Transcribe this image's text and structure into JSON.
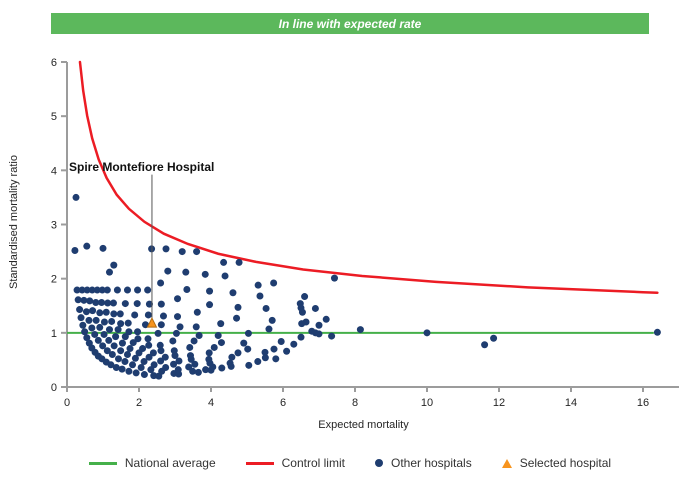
{
  "banner": {
    "text": "In line with expected rate",
    "bg": "#5cb85c",
    "fg": "#ffffff"
  },
  "colors": {
    "axis": "#9c9c9c",
    "tick_text": "#262626",
    "national_average": "#45b04a",
    "control_limit": "#ec1c24",
    "other_hospitals": "#1f3d70",
    "selected_fill": "#f7941e",
    "selected_stroke": "#b06a10",
    "annotation_line": "#555555"
  },
  "chart_data": {
    "type": "scatter",
    "xlabel": "Expected mortality",
    "ylabel": "Standardised mortality ratio",
    "xlim": [
      0,
      17
    ],
    "ylim": [
      0,
      6
    ],
    "xticks": [
      0,
      2,
      4,
      6,
      8,
      10,
      12,
      14,
      16
    ],
    "yticks": [
      0,
      1,
      2,
      3,
      4,
      5,
      6
    ],
    "grid": false,
    "legend_position": "bottom",
    "annotation": {
      "label": "Spire Montefiore Hospital",
      "line_x": 2.36,
      "line_top_y": 3.92
    },
    "selected_hospital": {
      "x": 2.36,
      "y": 1.18
    },
    "national_average": {
      "y": 1.0,
      "x_start": 0,
      "x_end": 16.3
    },
    "control_limit_points": [
      [
        0.36,
        6.0
      ],
      [
        0.45,
        5.47
      ],
      [
        0.56,
        5.01
      ],
      [
        0.7,
        4.59
      ],
      [
        0.88,
        4.2
      ],
      [
        1.1,
        3.86
      ],
      [
        1.38,
        3.55
      ],
      [
        1.72,
        3.29
      ],
      [
        2.15,
        3.05
      ],
      [
        2.69,
        2.83
      ],
      [
        3.36,
        2.64
      ],
      [
        4.2,
        2.46
      ],
      [
        5.25,
        2.31
      ],
      [
        6.56,
        2.17
      ],
      [
        8.2,
        2.05
      ],
      [
        10.25,
        1.94
      ],
      [
        12.8,
        1.84
      ],
      [
        16.0,
        1.75
      ],
      [
        16.4,
        1.74
      ]
    ],
    "other_hospitals": [
      [
        0.28,
        1.79
      ],
      [
        0.31,
        1.61
      ],
      [
        0.35,
        1.43
      ],
      [
        0.39,
        1.28
      ],
      [
        0.44,
        1.14
      ],
      [
        0.49,
        1.02
      ],
      [
        0.55,
        0.91
      ],
      [
        0.62,
        0.81
      ],
      [
        0.69,
        0.72
      ],
      [
        0.78,
        0.64
      ],
      [
        0.87,
        0.57
      ],
      [
        0.97,
        0.52
      ],
      [
        1.09,
        0.46
      ],
      [
        1.22,
        0.41
      ],
      [
        1.37,
        0.36
      ],
      [
        1.53,
        0.33
      ],
      [
        1.72,
        0.29
      ],
      [
        1.92,
        0.26
      ],
      [
        2.15,
        0.23
      ],
      [
        2.41,
        0.21
      ],
      [
        2.55,
        0.2
      ],
      [
        0.42,
        1.79
      ],
      [
        0.47,
        1.6
      ],
      [
        0.54,
        1.39
      ],
      [
        0.61,
        1.23
      ],
      [
        0.69,
        1.09
      ],
      [
        0.77,
        0.97
      ],
      [
        0.87,
        0.86
      ],
      [
        0.99,
        0.76
      ],
      [
        1.12,
        0.67
      ],
      [
        1.26,
        0.6
      ],
      [
        1.43,
        0.52
      ],
      [
        1.61,
        0.47
      ],
      [
        1.82,
        0.41
      ],
      [
        2.06,
        0.36
      ],
      [
        2.33,
        0.32
      ],
      [
        2.63,
        0.29
      ],
      [
        2.97,
        0.25
      ],
      [
        3.1,
        0.24
      ],
      [
        0.56,
        1.79
      ],
      [
        0.63,
        1.59
      ],
      [
        0.71,
        1.41
      ],
      [
        0.81,
        1.23
      ],
      [
        0.91,
        1.1
      ],
      [
        1.03,
        0.97
      ],
      [
        1.16,
        0.86
      ],
      [
        1.31,
        0.76
      ],
      [
        1.49,
        0.67
      ],
      [
        1.68,
        0.6
      ],
      [
        1.9,
        0.53
      ],
      [
        2.14,
        0.47
      ],
      [
        2.42,
        0.41
      ],
      [
        2.74,
        0.36
      ],
      [
        3.09,
        0.32
      ],
      [
        3.49,
        0.29
      ],
      [
        3.65,
        0.27
      ],
      [
        0.7,
        1.79
      ],
      [
        0.8,
        1.56
      ],
      [
        0.91,
        1.37
      ],
      [
        1.04,
        1.2
      ],
      [
        1.18,
        1.06
      ],
      [
        1.35,
        0.93
      ],
      [
        1.54,
        0.81
      ],
      [
        1.75,
        0.71
      ],
      [
        2.0,
        0.63
      ],
      [
        2.28,
        0.55
      ],
      [
        2.6,
        0.48
      ],
      [
        2.96,
        0.42
      ],
      [
        3.38,
        0.37
      ],
      [
        3.85,
        0.32
      ],
      [
        4.0,
        0.31
      ],
      [
        0.84,
        1.79
      ],
      [
        0.96,
        1.56
      ],
      [
        1.09,
        1.38
      ],
      [
        1.24,
        1.21
      ],
      [
        1.42,
        1.06
      ],
      [
        1.62,
        0.93
      ],
      [
        1.84,
        0.82
      ],
      [
        2.1,
        0.71
      ],
      [
        2.4,
        0.63
      ],
      [
        2.73,
        0.55
      ],
      [
        3.11,
        0.48
      ],
      [
        3.55,
        0.42
      ],
      [
        4.05,
        0.37
      ],
      [
        4.3,
        0.35
      ],
      [
        0.98,
        1.79
      ],
      [
        1.13,
        1.55
      ],
      [
        1.3,
        1.35
      ],
      [
        1.49,
        1.17
      ],
      [
        1.72,
        1.02
      ],
      [
        1.97,
        0.89
      ],
      [
        2.27,
        0.77
      ],
      [
        2.61,
        0.67
      ],
      [
        3.0,
        0.58
      ],
      [
        3.45,
        0.51
      ],
      [
        3.97,
        0.44
      ],
      [
        4.56,
        0.38
      ],
      [
        1.12,
        1.79
      ],
      [
        1.29,
        1.55
      ],
      [
        1.48,
        1.35
      ],
      [
        1.7,
        1.18
      ],
      [
        1.96,
        1.02
      ],
      [
        2.25,
        0.89
      ],
      [
        2.59,
        0.77
      ],
      [
        2.98,
        0.67
      ],
      [
        3.43,
        0.58
      ],
      [
        3.94,
        0.51
      ],
      [
        4.53,
        0.44
      ],
      [
        5.05,
        0.4
      ],
      [
        1.4,
        1.79
      ],
      [
        1.62,
        1.54
      ],
      [
        1.88,
        1.33
      ],
      [
        2.18,
        1.15
      ],
      [
        2.53,
        0.99
      ],
      [
        2.94,
        0.85
      ],
      [
        3.41,
        0.73
      ],
      [
        3.95,
        0.63
      ],
      [
        4.58,
        0.55
      ],
      [
        5.3,
        0.47
      ],
      [
        1.68,
        1.79
      ],
      [
        1.95,
        1.54
      ],
      [
        2.26,
        1.33
      ],
      [
        2.62,
        1.15
      ],
      [
        3.04,
        0.99
      ],
      [
        3.53,
        0.85
      ],
      [
        4.09,
        0.73
      ],
      [
        4.75,
        0.63
      ],
      [
        5.51,
        0.54
      ],
      [
        5.8,
        0.52
      ],
      [
        1.96,
        1.79
      ],
      [
        2.29,
        1.53
      ],
      [
        2.68,
        1.31
      ],
      [
        3.14,
        1.11
      ],
      [
        3.67,
        0.95
      ],
      [
        4.29,
        0.82
      ],
      [
        5.02,
        0.7
      ],
      [
        5.5,
        0.64
      ],
      [
        2.24,
        1.79
      ],
      [
        2.62,
        1.53
      ],
      [
        3.07,
        1.3
      ],
      [
        3.59,
        1.11
      ],
      [
        4.2,
        0.95
      ],
      [
        4.91,
        0.81
      ],
      [
        5.75,
        0.7
      ],
      [
        6.1,
        0.66
      ],
      [
        2.6,
        1.92
      ],
      [
        3.07,
        1.63
      ],
      [
        3.62,
        1.38
      ],
      [
        4.27,
        1.17
      ],
      [
        5.04,
        0.99
      ],
      [
        5.95,
        0.84
      ],
      [
        6.3,
        0.79
      ],
      [
        2.35,
        2.55
      ],
      [
        2.8,
        2.14
      ],
      [
        3.33,
        1.8
      ],
      [
        3.96,
        1.52
      ],
      [
        4.71,
        1.27
      ],
      [
        5.61,
        1.07
      ],
      [
        6.5,
        0.92
      ],
      [
        2.75,
        2.55
      ],
      [
        3.3,
        2.12
      ],
      [
        3.96,
        1.77
      ],
      [
        4.75,
        1.47
      ],
      [
        5.7,
        1.23
      ],
      [
        6.8,
        1.03
      ],
      [
        3.2,
        2.5
      ],
      [
        3.84,
        2.08
      ],
      [
        4.61,
        1.74
      ],
      [
        5.53,
        1.45
      ],
      [
        6.64,
        1.2
      ],
      [
        7.0,
        1.14
      ],
      [
        3.6,
        2.5
      ],
      [
        4.39,
        2.05
      ],
      [
        5.36,
        1.68
      ],
      [
        6.54,
        1.38
      ],
      [
        7.2,
        1.25
      ],
      [
        4.35,
        2.3
      ],
      [
        5.31,
        1.88
      ],
      [
        6.48,
        1.54
      ],
      [
        6.9,
        1.45
      ],
      [
        4.78,
        2.3
      ],
      [
        5.74,
        1.92
      ],
      [
        6.6,
        1.67
      ],
      [
        0.25,
        3.5
      ],
      [
        0.22,
        2.52
      ],
      [
        0.55,
        2.6
      ],
      [
        1.0,
        2.56
      ],
      [
        1.3,
        2.25
      ],
      [
        1.18,
        2.12
      ],
      [
        7.43,
        2.01
      ],
      [
        6.5,
        1.46
      ],
      [
        6.52,
        1.17
      ],
      [
        6.9,
        1.0
      ],
      [
        7.0,
        0.98
      ],
      [
        7.35,
        0.94
      ],
      [
        8.15,
        1.06
      ],
      [
        10.0,
        1.0
      ],
      [
        11.6,
        0.78
      ],
      [
        11.85,
        0.9
      ],
      [
        16.4,
        1.01
      ]
    ]
  },
  "legend": {
    "items": [
      {
        "label": "National average",
        "marker": "line",
        "color": "#45b04a"
      },
      {
        "label": "Control limit",
        "marker": "line",
        "color": "#ec1c24"
      },
      {
        "label": "Other hospitals",
        "marker": "dot",
        "color": "#1f3d70"
      },
      {
        "label": "Selected hospital",
        "marker": "triangle",
        "color": "#f7941e"
      }
    ]
  }
}
